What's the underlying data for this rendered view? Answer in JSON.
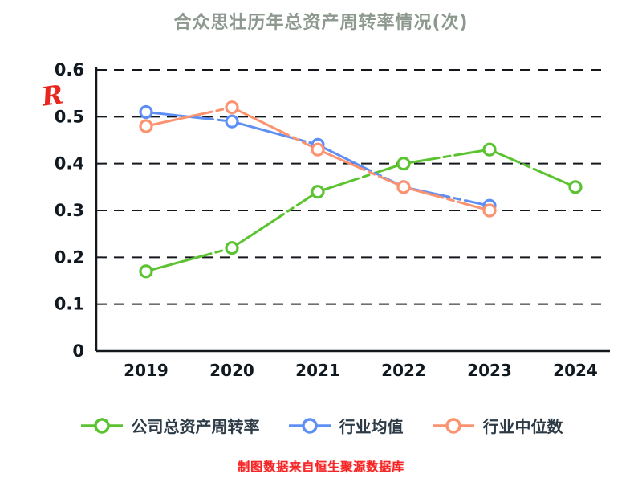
{
  "title": "合众思壮历年总资产周转率情况(次)",
  "annotation": {
    "red_mark": "R"
  },
  "caption": "制图数据来自恒生聚源数据库",
  "chart_data": {
    "type": "line",
    "title": "合众思壮历年总资产周转率情况(次)",
    "categories": [
      "2019",
      "2020",
      "2021",
      "2022",
      "2023",
      "2024"
    ],
    "y_ticks": [
      0,
      0.1,
      0.2,
      0.3,
      0.4,
      0.5,
      0.6
    ],
    "ylim": [
      0,
      0.6
    ],
    "grid": "horizontal-dashed",
    "legend_position": "bottom",
    "marker": "white-filled-circle",
    "series": [
      {
        "key": "company",
        "name": "公司总资产周转率",
        "color": "#5bc330",
        "values": [
          0.17,
          0.22,
          0.34,
          0.4,
          0.43,
          0.35
        ]
      },
      {
        "key": "industry-avg",
        "name": "行业均值",
        "color": "#5e8ff5",
        "values": [
          0.51,
          0.49,
          0.44,
          0.35,
          0.31,
          null
        ]
      },
      {
        "key": "industry-median",
        "name": "行业中位数",
        "color": "#fb9270",
        "values": [
          0.48,
          0.52,
          0.43,
          0.35,
          0.3,
          null
        ]
      }
    ]
  }
}
